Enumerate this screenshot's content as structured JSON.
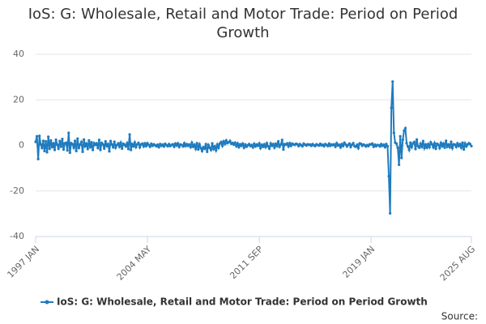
{
  "chart_data": {
    "type": "line",
    "title": "IoS: G: Wholesale, Retail and Motor Trade: Period on Period Growth",
    "source": "Source:",
    "categories": [
      "1997 JAN",
      null,
      null,
      null,
      null,
      null,
      null,
      null,
      null,
      null,
      null,
      null,
      null,
      null,
      null,
      null,
      null,
      null,
      null,
      null,
      null,
      null,
      null,
      null,
      null,
      null,
      null,
      null,
      null,
      null,
      null,
      null,
      null,
      null,
      null,
      null,
      null,
      null,
      null,
      null,
      null,
      null,
      null,
      null,
      null,
      null,
      null,
      null,
      null,
      null,
      null,
      null,
      null,
      null,
      null,
      null,
      null,
      null,
      null,
      null,
      null,
      null,
      null,
      null,
      null,
      null,
      null,
      null,
      null,
      null,
      null,
      null,
      null,
      null,
      null,
      null,
      null,
      null,
      null,
      null,
      null,
      null,
      null,
      null,
      null,
      null,
      null,
      null,
      "2004 MAY",
      null,
      null,
      null,
      null,
      null,
      null,
      null,
      null,
      null,
      null,
      null,
      null,
      null,
      null,
      null,
      null,
      null,
      null,
      null,
      null,
      null,
      null,
      null,
      null,
      null,
      null,
      null,
      null,
      null,
      null,
      null,
      null,
      null,
      null,
      null,
      null,
      null,
      null,
      null,
      null,
      null,
      null,
      null,
      null,
      null,
      null,
      null,
      null,
      null,
      null,
      null,
      null,
      null,
      null,
      null,
      null,
      null,
      null,
      null,
      null,
      null,
      null,
      null,
      null,
      null,
      null,
      null,
      null,
      null,
      null,
      null,
      null,
      null,
      null,
      null,
      null,
      null,
      null,
      null,
      null,
      null,
      null,
      null,
      null,
      null,
      null,
      null,
      "2011 SEP",
      null,
      null,
      null,
      null,
      null,
      null,
      null,
      null,
      null,
      null,
      null,
      null,
      null,
      null,
      null,
      null,
      null,
      null,
      null,
      null,
      null,
      null,
      null,
      null,
      null,
      null,
      null,
      null,
      null,
      null,
      null,
      null,
      null,
      null,
      null,
      null,
      null,
      null,
      null,
      null,
      null,
      null,
      null,
      null,
      null,
      null,
      null,
      null,
      null,
      null,
      null,
      null,
      null,
      null,
      null,
      null,
      null,
      null,
      null,
      null,
      null,
      null,
      null,
      null,
      null,
      null,
      null,
      null,
      null,
      null,
      null,
      null,
      null,
      null,
      null,
      null,
      null,
      null,
      null,
      null,
      null,
      null,
      null,
      null,
      null,
      null,
      null,
      "2019 JAN",
      null,
      null,
      null,
      null,
      null,
      null,
      null,
      null,
      null,
      null,
      null,
      null,
      null,
      null,
      null,
      null,
      null,
      null,
      null,
      null,
      null,
      null,
      null,
      null,
      null,
      null,
      null,
      null,
      null,
      null,
      null,
      null,
      null,
      null,
      null,
      null,
      null,
      null,
      null,
      null,
      null,
      null,
      null,
      null,
      null,
      null,
      null,
      null,
      null,
      null,
      null,
      null,
      null,
      null,
      null,
      null,
      null,
      null,
      null,
      null,
      null,
      null,
      null,
      null,
      null,
      null,
      null,
      null,
      null,
      null,
      null,
      null,
      null,
      null,
      null,
      null,
      null,
      null,
      "2025 AUG"
    ],
    "series": [
      {
        "name": "IoS: G: Wholesale, Retail and Motor Trade: Period on Period Growth",
        "color": "#1f7bbf",
        "values": [
          1.5,
          4.0,
          -6.0,
          4.2,
          0.5,
          -1.2,
          2.0,
          -2.5,
          1.8,
          -3.0,
          3.8,
          -1.5,
          2.2,
          -0.8,
          1.0,
          -2.0,
          2.5,
          0.3,
          -1.5,
          1.9,
          -0.6,
          2.8,
          -1.8,
          0.9,
          1.2,
          -2.2,
          5.5,
          -3.2,
          1.0,
          0.6,
          -1.0,
          2.0,
          -2.5,
          3.0,
          -1.2,
          0.4,
          1.5,
          -2.8,
          2.6,
          -0.4,
          0.8,
          -1.6,
          2.2,
          -0.9,
          1.4,
          -2.0,
          1.0,
          0.2,
          0.9,
          -1.2,
          2.4,
          -2.0,
          1.1,
          0.5,
          -1.4,
          1.8,
          -0.3,
          0.6,
          -2.6,
          1.9,
          0.4,
          -0.8,
          1.6,
          -1.0,
          0.2,
          0.9,
          -0.6,
          1.2,
          -1.4,
          0.7,
          0.3,
          -0.5,
          1.0,
          -1.6,
          4.8,
          -2.0,
          0.6,
          -0.4,
          1.3,
          -0.8,
          0.5,
          1.1,
          -0.9,
          0.4,
          0.8,
          -0.5,
          0.9,
          -0.3,
          1.0,
          0.2,
          -0.6,
          0.7,
          -0.2,
          0.5,
          0.1,
          -0.4,
          0.3,
          -0.8,
          0.6,
          -0.2,
          0.4,
          -0.5,
          0.7,
          0.1,
          -0.4,
          0.6,
          -0.3,
          0.2,
          0.5,
          -0.6,
          0.8,
          -0.1,
          0.9,
          -0.7,
          0.4,
          0.2,
          -0.5,
          1.0,
          -0.3,
          0.6,
          -0.2,
          0.4,
          -0.8,
          1.2,
          -0.6,
          0.3,
          -1.5,
          1.0,
          -1.8,
          0.5,
          -1.2,
          -2.5,
          -0.8,
          -1.5,
          0.6,
          -2.8,
          0.2,
          -1.0,
          -2.0,
          0.9,
          -1.6,
          -0.4,
          -2.2,
          0.4,
          -1.1,
          0.8,
          1.5,
          -0.2,
          1.8,
          0.6,
          2.2,
          1.0,
          1.4,
          2.0,
          0.7,
          1.1,
          0.3,
          1.2,
          -0.4,
          0.9,
          -0.8,
          0.5,
          -0.2,
          0.8,
          -1.0,
          0.4,
          -0.6,
          0.1,
          0.6,
          -0.3,
          0.2,
          -0.9,
          0.7,
          -0.5,
          0.4,
          -0.2,
          0.9,
          -1.2,
          0.3,
          -0.6,
          0.5,
          -0.8,
          1.0,
          -0.4,
          -1.4,
          0.9,
          -0.2,
          0.6,
          -1.0,
          0.7,
          -0.3,
          1.8,
          -0.6,
          0.4,
          2.4,
          -1.8,
          0.6,
          0.3,
          0.9,
          -0.5,
          1.0,
          -0.2,
          0.8,
          0.4,
          0.2,
          0.7,
          0.5,
          -0.3,
          0.6,
          0.1,
          -0.4,
          0.8,
          0.3,
          -0.1,
          0.5,
          0.2,
          0.4,
          -0.2,
          0.6,
          0.1,
          -0.3,
          0.5,
          0.2,
          -0.1,
          0.7,
          0.0,
          0.3,
          -0.4,
          0.6,
          0.2,
          -0.3,
          0.8,
          -0.2,
          0.4,
          0.1,
          0.5,
          -0.6,
          1.0,
          -0.1,
          0.3,
          -0.9,
          0.6,
          -0.3,
          1.2,
          0.4,
          -0.5,
          0.2,
          0.8,
          -0.7,
          0.3,
          1.0,
          -0.4,
          -0.6,
          0.3,
          -1.2,
          0.9,
          0.7,
          -0.2,
          0.4,
          0.1,
          -0.5,
          0.2,
          -0.3,
          0.5,
          0.4,
          0.8,
          -0.6,
          0.3,
          -0.4,
          0.2,
          0.1,
          -0.5,
          0.6,
          -0.2,
          0.3,
          -0.8,
          0.6,
          -0.4,
          -13.5,
          -29.8,
          16.5,
          28.0,
          5.5,
          1.2,
          0.8,
          -1.0,
          -8.5,
          4.0,
          -5.5,
          2.5,
          6.5,
          7.5,
          1.0,
          -0.5,
          -2.0,
          1.2,
          -0.8,
          0.9,
          1.5,
          -1.6,
          2.6,
          -0.4,
          -1.0,
          0.8,
          -0.6,
          1.9,
          -1.2,
          0.4,
          -1.0,
          0.6,
          -0.8,
          1.4,
          0.5,
          -0.9,
          1.0,
          -1.5,
          0.7,
          0.3,
          -1.2,
          1.1,
          -0.4,
          0.8,
          -1.0,
          2.0,
          -0.6,
          0.4,
          -0.8,
          1.6,
          -1.2,
          0.5,
          0.3,
          -0.7,
          0.9,
          -0.3,
          0.6,
          -1.0,
          1.2,
          -1.8,
          0.9,
          -0.5,
          0.4,
          1.0,
          0.6,
          -0.3
        ]
      }
    ],
    "ylim": [
      -40,
      40
    ],
    "yticks": [
      -40,
      -20,
      0,
      20,
      40
    ],
    "grid": true
  }
}
